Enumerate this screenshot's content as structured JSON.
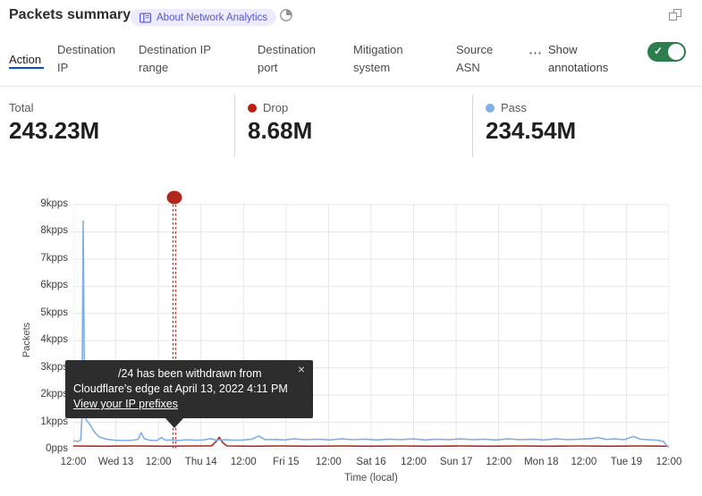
{
  "colors": {
    "accent": "#0052cc",
    "toggle_green": "#2e7d4e",
    "drop_red": "#bb2014",
    "pass_blue": "#7fafe8",
    "grid": "#e7e7e7"
  },
  "header": {
    "title": "Packets summary",
    "badge_label": "About Network Analytics"
  },
  "window": {
    "popout_icon": "popout"
  },
  "tabs": {
    "items": [
      {
        "label": "Action",
        "active": true
      },
      {
        "label": "Destination IP"
      },
      {
        "label": "Destination IP range"
      },
      {
        "label": "Destination port"
      },
      {
        "label": "Mitigation system"
      },
      {
        "label": "Source ASN"
      }
    ],
    "more": "⋯",
    "annotations_label": "Show annotations",
    "toggle_on": true,
    "toggle_check": "✓"
  },
  "stats": {
    "total": {
      "label": "Total",
      "value": "243.23M"
    },
    "drop": {
      "label": "Drop",
      "value": "8.68M"
    },
    "pass": {
      "label": "Pass",
      "value": "234.54M"
    }
  },
  "tooltip": {
    "line1": "/24 has been withdrawn from",
    "line2": "Cloudflare's edge at April 13, 2022 4:11 PM",
    "link": "View your IP prefixes",
    "close": "×"
  },
  "chart_data": {
    "type": "line",
    "title": "Packets summary",
    "xlabel": "Time (local)",
    "ylabel": "Packets",
    "x_ticks": [
      "12:00",
      "Wed 13",
      "12:00",
      "Thu 14",
      "12:00",
      "Fri 15",
      "12:00",
      "Sat 16",
      "12:00",
      "Sun 17",
      "12:00",
      "Mon 18",
      "12:00",
      "Tue 19",
      "12:00"
    ],
    "y_ticks": [
      "9kpps",
      "8kpps",
      "7kpps",
      "6kpps",
      "5kpps",
      "4kpps",
      "3kpps",
      "2kpps",
      "1kpps",
      "0pps"
    ],
    "y_max_kpps": 9,
    "grid": true,
    "legend_position": "top",
    "annotation": {
      "x_frac": 0.1697,
      "dot_color": "#b1271b",
      "line_color": "#a8392c",
      "text": "/24 has been withdrawn from Cloudflare's edge at April 13, 2022 4:11 PM"
    },
    "series": [
      {
        "name": "Pass",
        "color": "#7fafe8",
        "unit": "kpps",
        "points": [
          [
            0,
            0.32
          ],
          [
            0.008,
            0.3
          ],
          [
            0.0125,
            0.35
          ],
          [
            0.0145,
            1.2
          ],
          [
            0.0165,
            8.4
          ],
          [
            0.0185,
            3.0
          ],
          [
            0.021,
            1.1
          ],
          [
            0.025,
            1.0
          ],
          [
            0.03,
            0.85
          ],
          [
            0.036,
            0.62
          ],
          [
            0.044,
            0.46
          ],
          [
            0.055,
            0.38
          ],
          [
            0.07,
            0.34
          ],
          [
            0.085,
            0.33
          ],
          [
            0.1,
            0.34
          ],
          [
            0.109,
            0.38
          ],
          [
            0.114,
            0.62
          ],
          [
            0.119,
            0.4
          ],
          [
            0.128,
            0.34
          ],
          [
            0.14,
            0.33
          ],
          [
            0.148,
            0.44
          ],
          [
            0.155,
            0.34
          ],
          [
            0.165,
            0.35
          ],
          [
            0.175,
            0.33
          ],
          [
            0.19,
            0.36
          ],
          [
            0.205,
            0.34
          ],
          [
            0.218,
            0.35
          ],
          [
            0.23,
            0.4
          ],
          [
            0.24,
            0.34
          ],
          [
            0.255,
            0.36
          ],
          [
            0.27,
            0.34
          ],
          [
            0.285,
            0.35
          ],
          [
            0.3,
            0.38
          ],
          [
            0.311,
            0.5
          ],
          [
            0.322,
            0.36
          ],
          [
            0.34,
            0.37
          ],
          [
            0.355,
            0.35
          ],
          [
            0.37,
            0.39
          ],
          [
            0.39,
            0.36
          ],
          [
            0.41,
            0.38
          ],
          [
            0.43,
            0.35
          ],
          [
            0.45,
            0.39
          ],
          [
            0.47,
            0.36
          ],
          [
            0.49,
            0.38
          ],
          [
            0.51,
            0.35
          ],
          [
            0.53,
            0.38
          ],
          [
            0.55,
            0.36
          ],
          [
            0.57,
            0.39
          ],
          [
            0.59,
            0.35
          ],
          [
            0.61,
            0.38
          ],
          [
            0.63,
            0.36
          ],
          [
            0.65,
            0.39
          ],
          [
            0.67,
            0.36
          ],
          [
            0.69,
            0.38
          ],
          [
            0.71,
            0.35
          ],
          [
            0.73,
            0.39
          ],
          [
            0.75,
            0.36
          ],
          [
            0.77,
            0.38
          ],
          [
            0.79,
            0.35
          ],
          [
            0.81,
            0.39
          ],
          [
            0.83,
            0.36
          ],
          [
            0.85,
            0.38
          ],
          [
            0.87,
            0.4
          ],
          [
            0.88,
            0.44
          ],
          [
            0.895,
            0.37
          ],
          [
            0.91,
            0.39
          ],
          [
            0.925,
            0.36
          ],
          [
            0.94,
            0.48
          ],
          [
            0.952,
            0.38
          ],
          [
            0.965,
            0.36
          ],
          [
            0.98,
            0.34
          ],
          [
            0.991,
            0.3
          ],
          [
            0.997,
            0.12
          ],
          [
            1,
            0.1
          ]
        ]
      },
      {
        "name": "Drop",
        "color": "#b2251a",
        "unit": "kpps",
        "points": [
          [
            0,
            0.13
          ],
          [
            0.05,
            0.12
          ],
          [
            0.1,
            0.13
          ],
          [
            0.15,
            0.12
          ],
          [
            0.2,
            0.13
          ],
          [
            0.232,
            0.13
          ],
          [
            0.24,
            0.3
          ],
          [
            0.245,
            0.45
          ],
          [
            0.251,
            0.25
          ],
          [
            0.258,
            0.13
          ],
          [
            0.3,
            0.12
          ],
          [
            0.35,
            0.13
          ],
          [
            0.4,
            0.12
          ],
          [
            0.45,
            0.13
          ],
          [
            0.5,
            0.12
          ],
          [
            0.55,
            0.13
          ],
          [
            0.6,
            0.12
          ],
          [
            0.65,
            0.13
          ],
          [
            0.7,
            0.12
          ],
          [
            0.75,
            0.13
          ],
          [
            0.8,
            0.12
          ],
          [
            0.85,
            0.13
          ],
          [
            0.9,
            0.12
          ],
          [
            0.95,
            0.13
          ],
          [
            1,
            0.12
          ]
        ]
      }
    ]
  }
}
